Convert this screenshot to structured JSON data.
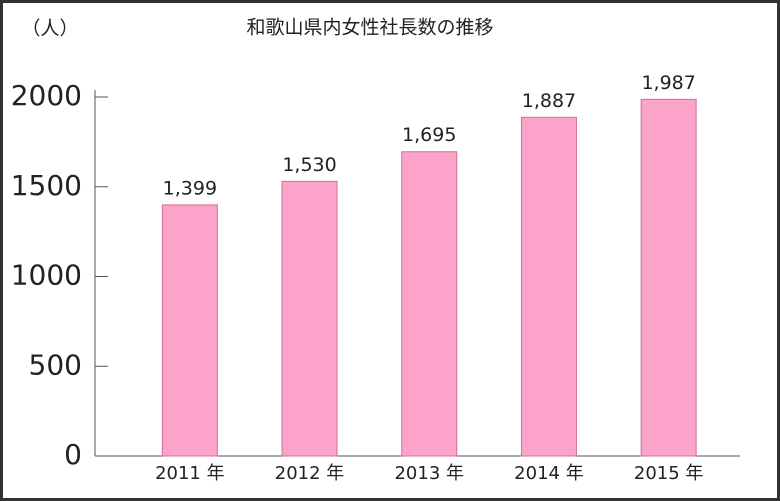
{
  "chart_data": {
    "type": "bar",
    "title": "和歌山県内女性社長数の推移",
    "y_label": "（人）",
    "categories": [
      "2011 年",
      "2012 年",
      "2013 年",
      "2014 年",
      "2015 年"
    ],
    "values": [
      1399,
      1530,
      1695,
      1887,
      1987
    ],
    "value_labels": [
      "1,399",
      "1,530",
      "1,695",
      "1,887",
      "1,987"
    ],
    "color": "#fba3c8",
    "ylim": [
      0,
      2000
    ],
    "yticks": [
      0,
      500,
      1000,
      1500,
      2000
    ],
    "grid": false
  }
}
